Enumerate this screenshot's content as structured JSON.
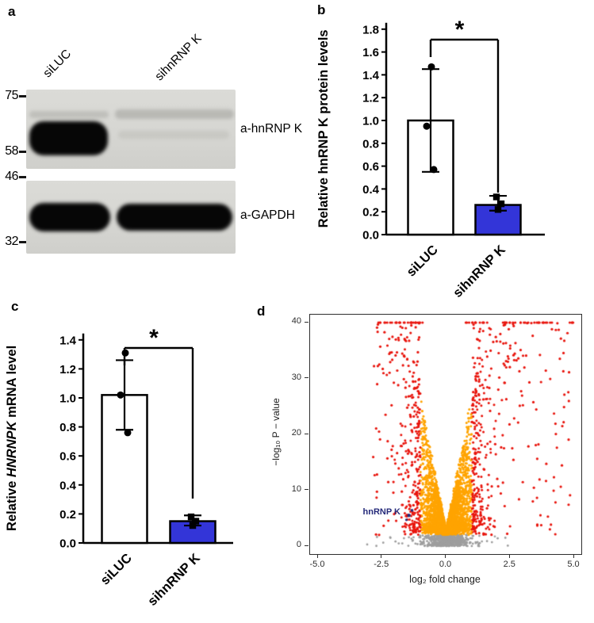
{
  "panels": {
    "a": {
      "letter": "a",
      "lanes": [
        "siLUC",
        "sihnRNP K"
      ],
      "markers": [
        "75",
        "58",
        "46",
        "32"
      ],
      "blots": [
        {
          "antibody_label": "a-hnRNP K",
          "bands": [
            {
              "lane": "siLUC",
              "intensity": "strong"
            },
            {
              "lane": "sihnRNP K",
              "intensity": "faint"
            }
          ]
        },
        {
          "antibody_label": "a-GAPDH",
          "bands": [
            {
              "lane": "siLUC",
              "intensity": "strong"
            },
            {
              "lane": "sihnRNP K",
              "intensity": "strong"
            }
          ]
        }
      ]
    },
    "b": {
      "letter": "b"
    },
    "c": {
      "letter": "c"
    },
    "d": {
      "letter": "d"
    }
  },
  "chart_data": [
    {
      "panel": "b",
      "type": "bar",
      "title": "",
      "ylabel": "Relative hnRNP K protein levels",
      "ylabel_parts": [
        {
          "text": "Relative hnRNP K protein levels",
          "italic": false
        }
      ],
      "categories": [
        "siLUC",
        "sihnRNP K"
      ],
      "values": [
        1.0,
        0.26
      ],
      "error_low": [
        0.55,
        0.21
      ],
      "error_high": [
        1.45,
        0.34
      ],
      "scatter_points": [
        [
          1.47,
          0.95,
          0.57
        ],
        [
          0.33,
          0.27,
          0.22
        ]
      ],
      "point_shapes": [
        "circle",
        "square"
      ],
      "bar_colors": [
        "#ffffff",
        "#3335d8"
      ],
      "ylim": [
        0,
        1.8
      ],
      "ytick_step": 0.2,
      "significance_label": "*"
    },
    {
      "panel": "c",
      "type": "bar",
      "title": "",
      "ylabel": "Relative HNRNPK mRNA level",
      "ylabel_parts": [
        {
          "text": "Relative ",
          "italic": false
        },
        {
          "text": "HNRNPK",
          "italic": true
        },
        {
          "text": " mRNA level",
          "italic": false
        }
      ],
      "categories": [
        "siLUC",
        "sihnRNP K"
      ],
      "values": [
        1.02,
        0.15
      ],
      "error_low": [
        0.78,
        0.12
      ],
      "error_high": [
        1.26,
        0.19
      ],
      "scatter_points": [
        [
          1.31,
          1.02,
          0.76
        ],
        [
          0.18,
          0.15,
          0.12
        ]
      ],
      "point_shapes": [
        "circle",
        "square"
      ],
      "bar_colors": [
        "#ffffff",
        "#3335d8"
      ],
      "ylim": [
        0,
        1.4
      ],
      "ytick_step": 0.2,
      "significance_label": "*"
    },
    {
      "panel": "d",
      "type": "scatter",
      "title": "",
      "xlabel": "log₂ fold change",
      "ylabel": "−log₁₀ P − value",
      "xlim": [
        -5.5,
        5.5
      ],
      "ylim": [
        -1.5,
        42
      ],
      "xticks": [
        -5.0,
        -2.5,
        0.0,
        2.5,
        5.0
      ],
      "yticks": [
        0,
        10,
        20,
        30,
        40
      ],
      "thresholds": {
        "abs_log2fc": 1.0,
        "neg_log10_p": 2.0
      },
      "colors": {
        "significant_large_fc": "#e8140c",
        "significant_small_fc": "#ffa400",
        "nonsignificant": "#9e9e9e"
      },
      "annotation": {
        "text": "hnRNP K",
        "color": "#252a7a",
        "text_x": -3.25,
        "text_y": 6.0,
        "point_x": -1.45,
        "point_y": 5.5
      },
      "point_counts": {
        "core": 3200,
        "extra_significant": 260,
        "nonsignificant": 600,
        "top_capped": 72
      },
      "seed": 123457
    }
  ]
}
